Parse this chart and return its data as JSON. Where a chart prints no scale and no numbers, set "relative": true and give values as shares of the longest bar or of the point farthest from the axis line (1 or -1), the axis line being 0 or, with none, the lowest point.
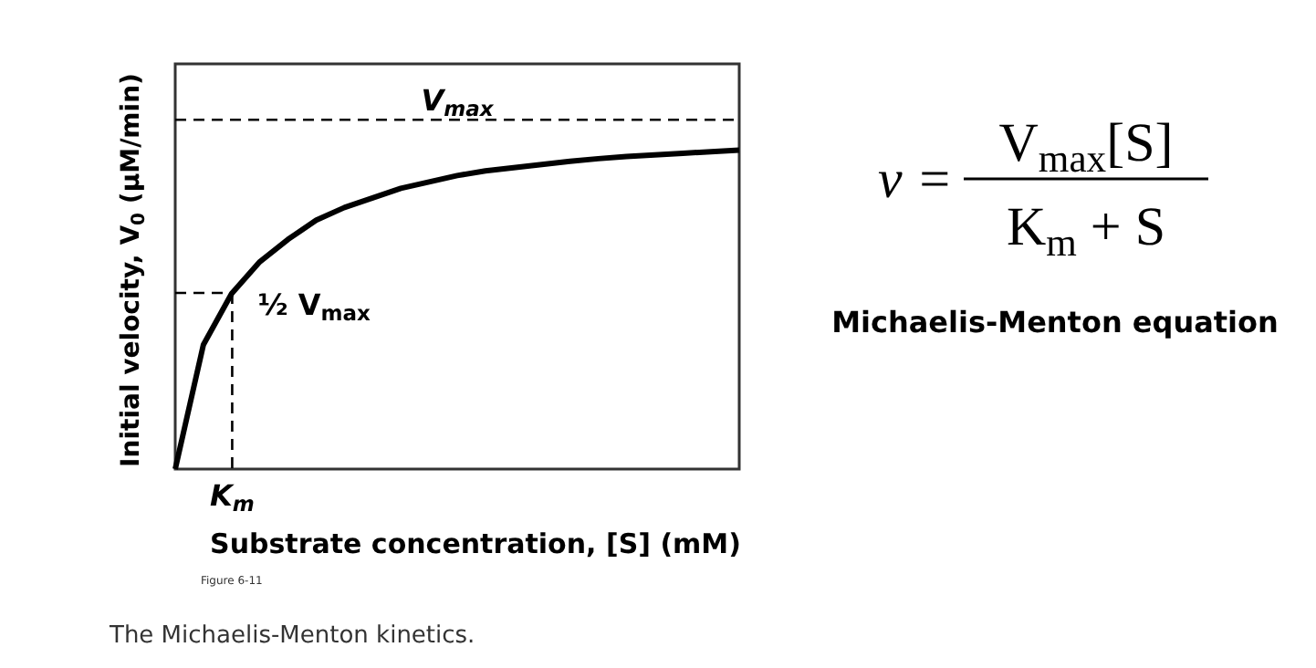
{
  "chart_data": [
    {
      "type": "line",
      "relative": true,
      "xlabel": "Substrate concentration, [S] (mM)",
      "ylabel": "Initial velocity, V$_{0}$ (μM/min)",
      "line_style": "solid",
      "categories": [
        null,
        null,
        null,
        null,
        null,
        null,
        null,
        null,
        null,
        null,
        null,
        null,
        null,
        null,
        null,
        null,
        null,
        null,
        null,
        null,
        null
      ],
      "series": [
        {
          "color": "#000000",
          "values": [
            0,
            0.39,
            0.55,
            0.65,
            0.72,
            0.78,
            0.82,
            0.85,
            0.88,
            0.9,
            0.92,
            0.935,
            0.945,
            0.955,
            0.965,
            0.973,
            0.98,
            0.985,
            0.99,
            0.995,
            1
          ]
        }
      ],
      "ref_lines": [
        {
          "axis": "y",
          "value": 1.095,
          "label": "V$_{max}$",
          "line_style": "dashed"
        },
        {
          "axis": "y",
          "value": 0.552,
          "label": "½ V$_{max}$",
          "line_style": "dashed"
        }
      ],
      "annotations": [
        "K$_{m}$",
        "Figure 6-11",
        "The Michaelis-Menton kinetics."
      ]
    },
    {
      "type": "other",
      "title": "Michaelis-Menton equation",
      "annotations": [
        "v =",
        "V$_{max}$[S]",
        "K$_{m}$ + S"
      ]
    }
  ]
}
